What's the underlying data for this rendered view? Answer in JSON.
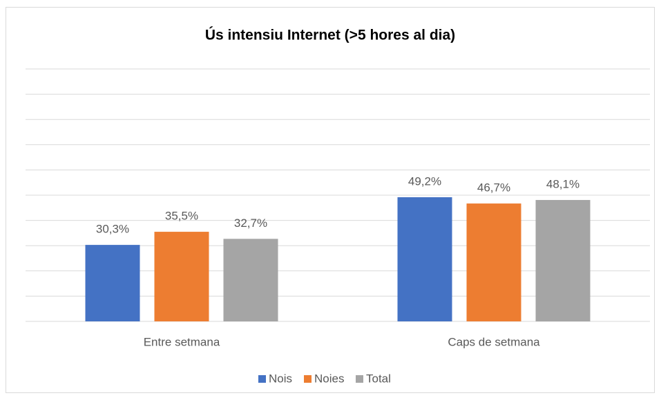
{
  "chart_data": {
    "type": "bar",
    "title": "Ús intensiu Internet (>5 hores al dia)",
    "categories": [
      "Entre setmana",
      "Caps de setmana"
    ],
    "series": [
      {
        "name": "Nois",
        "color": "#4472c4",
        "values": [
          30.3,
          49.2
        ],
        "value_labels": [
          "30,3%",
          "49,2%"
        ]
      },
      {
        "name": "Noies",
        "color": "#ed7d31",
        "values": [
          35.5,
          46.7
        ],
        "value_labels": [
          "35,5%",
          "46,7%"
        ]
      },
      {
        "name": "Total",
        "color": "#a5a5a5",
        "values": [
          32.7,
          48.1
        ],
        "value_labels": [
          "32,7%",
          "48,1%"
        ]
      }
    ],
    "ylim": [
      0,
      100
    ],
    "yticks": [
      0,
      10,
      20,
      30,
      40,
      50,
      60,
      70,
      80,
      90,
      100
    ],
    "grid": true,
    "legend": "bottom"
  }
}
